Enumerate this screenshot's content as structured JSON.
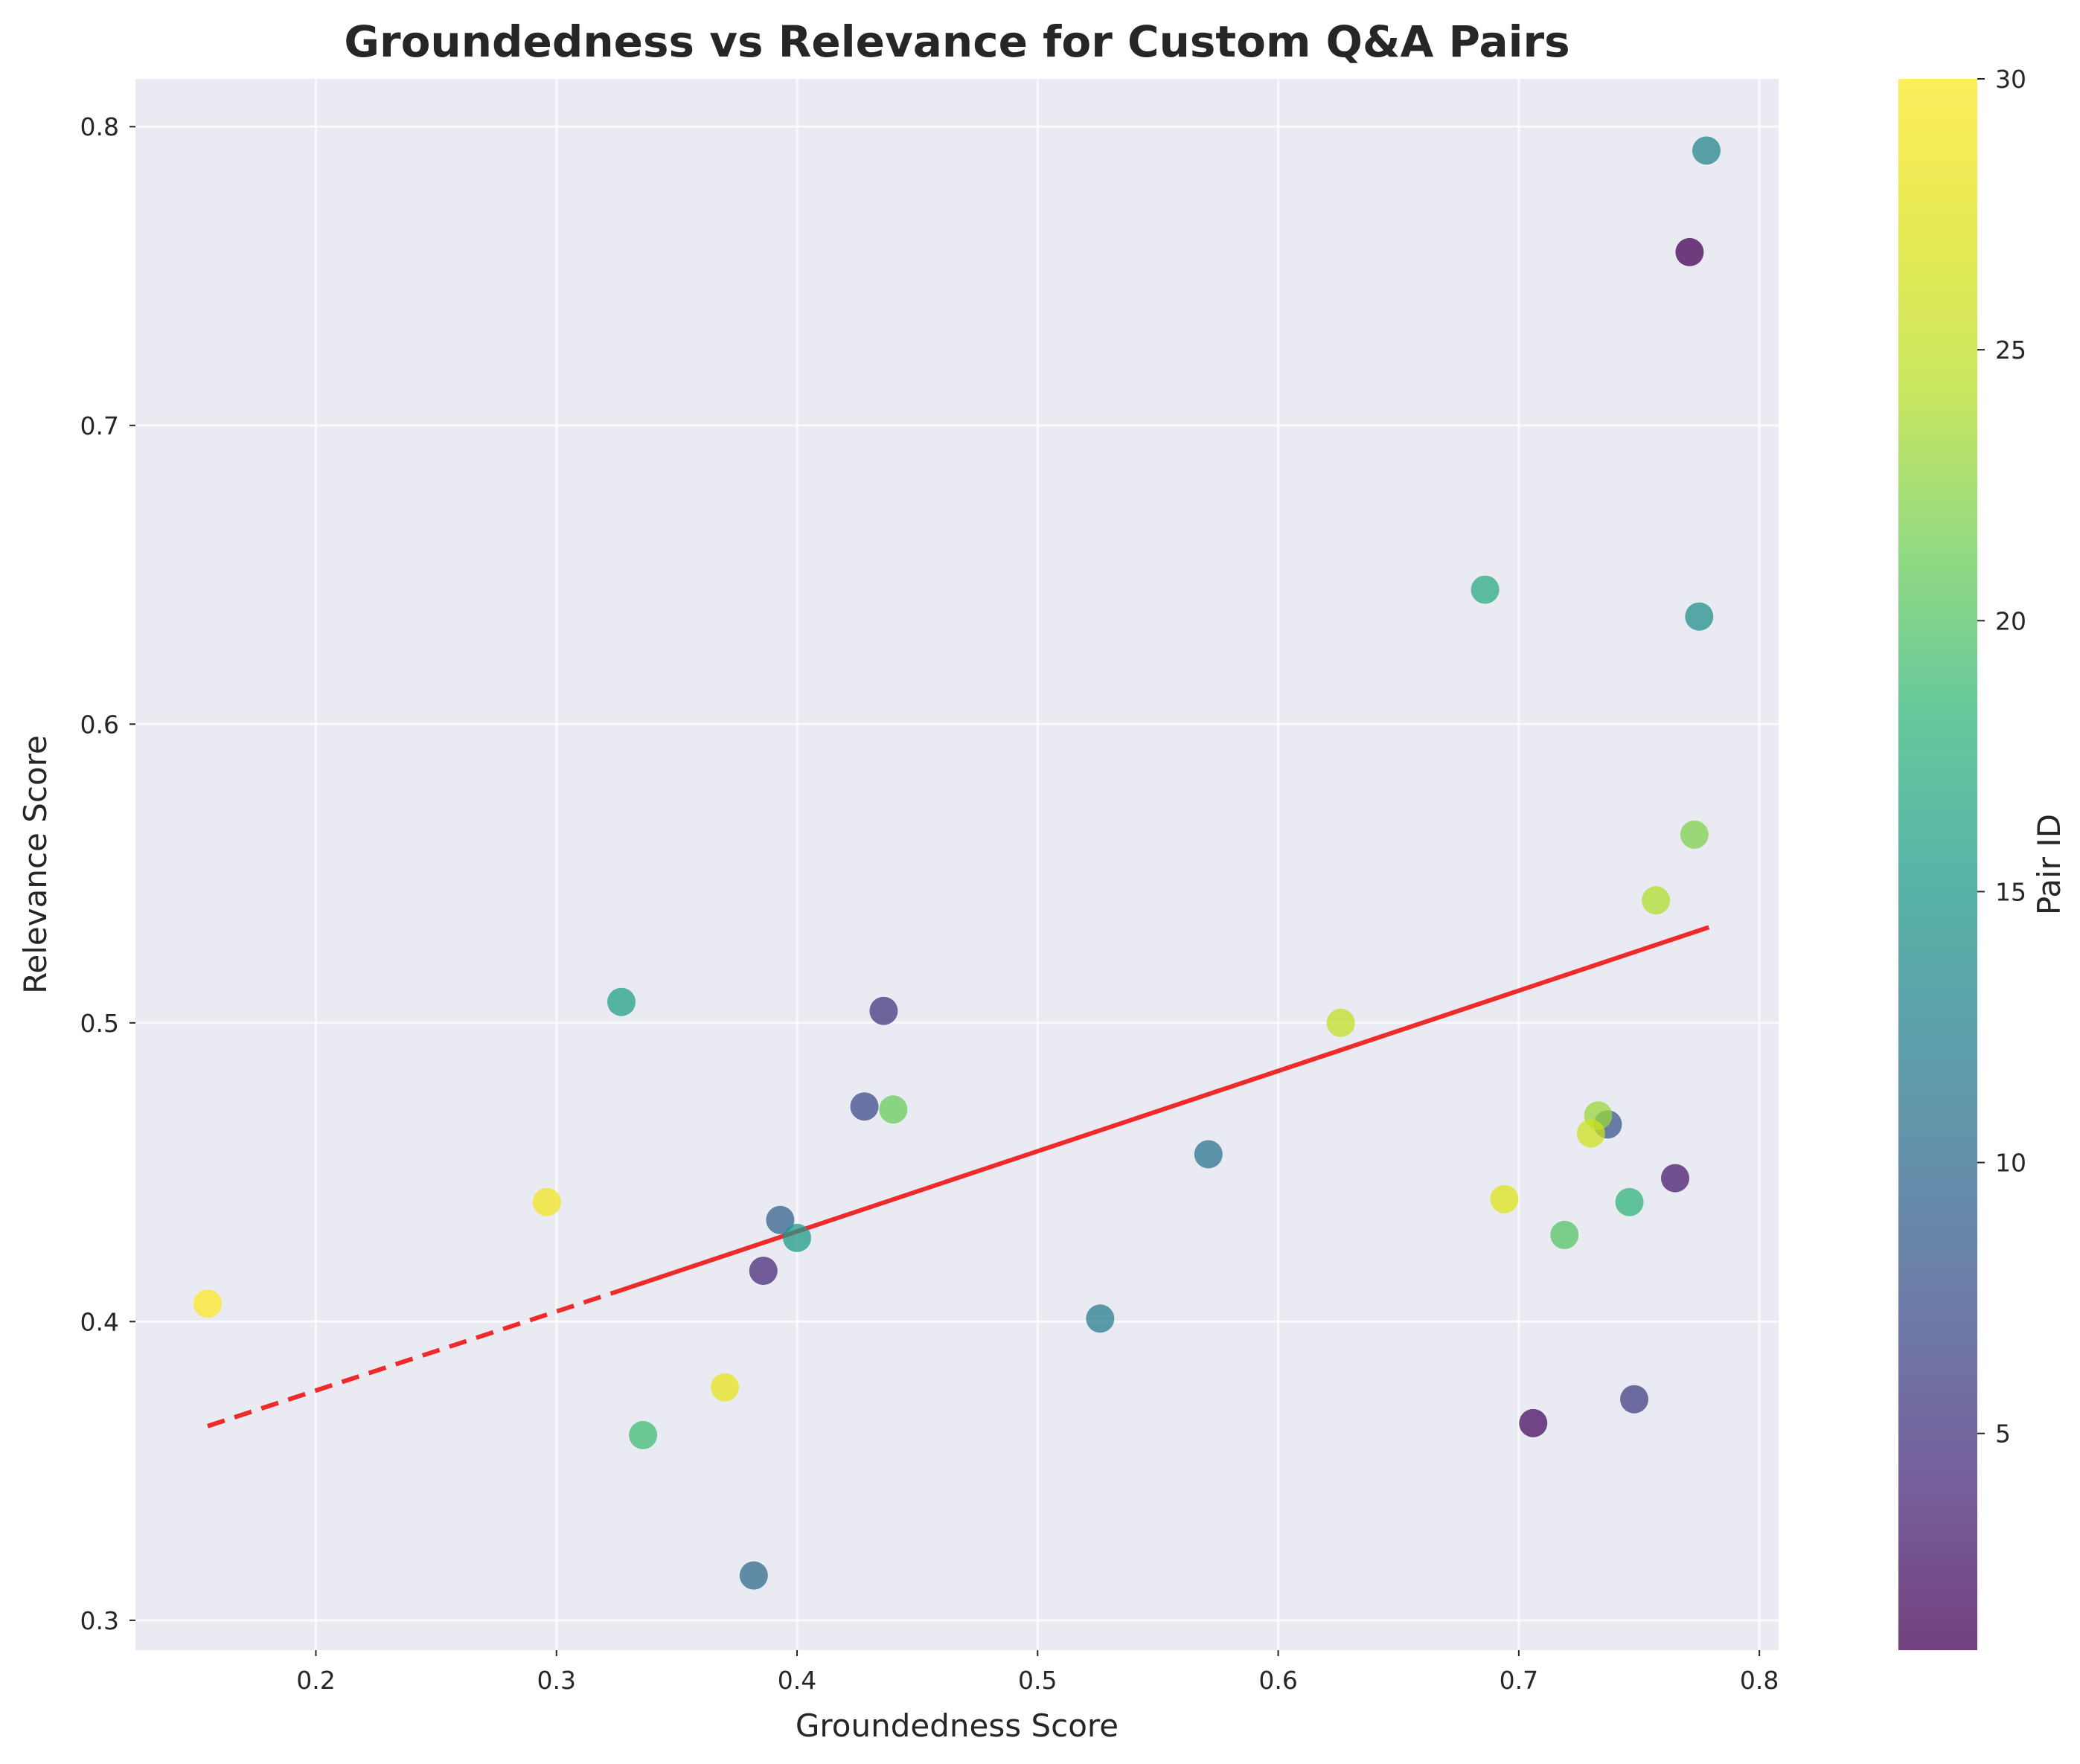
{
  "chart_data": {
    "type": "scatter",
    "title": "Groundedness vs Relevance for Custom Q&A Pairs",
    "xlabel": "Groundedness Score",
    "ylabel": "Relevance Score",
    "xlim": [
      0.125,
      0.808
    ],
    "ylim": [
      0.29,
      0.816
    ],
    "xticks": [
      0.2,
      0.3,
      0.4,
      0.5,
      0.6,
      0.7,
      0.8
    ],
    "yticks": [
      0.3,
      0.4,
      0.5,
      0.6,
      0.7,
      0.8
    ],
    "grid": true,
    "colormap": "viridis",
    "colorbar": {
      "label": "Pair ID",
      "range": [
        1,
        30
      ],
      "ticks": [
        5,
        10,
        15,
        20,
        25,
        30
      ]
    },
    "trendline": {
      "color": "#ee2a2a",
      "dashed_segment": {
        "x1": 0.155,
        "y1": 0.365,
        "x2": 0.325,
        "y2": 0.41
      },
      "solid_segment": {
        "x1": 0.325,
        "y1": 0.41,
        "x2": 0.779,
        "y2": 0.532
      }
    },
    "points": [
      {
        "id": 1,
        "x": 0.771,
        "y": 0.758
      },
      {
        "id": 2,
        "x": 0.706,
        "y": 0.366
      },
      {
        "id": 3,
        "x": 0.765,
        "y": 0.448
      },
      {
        "id": 4,
        "x": 0.386,
        "y": 0.417
      },
      {
        "id": 5,
        "x": 0.436,
        "y": 0.504
      },
      {
        "id": 6,
        "x": 0.748,
        "y": 0.374
      },
      {
        "id": 7,
        "x": 0.428,
        "y": 0.472
      },
      {
        "id": 8,
        "x": 0.737,
        "y": 0.466
      },
      {
        "id": 9,
        "x": 0.393,
        "y": 0.434
      },
      {
        "id": 10,
        "x": 0.382,
        "y": 0.315
      },
      {
        "id": 11,
        "x": 0.571,
        "y": 0.456
      },
      {
        "id": 12,
        "x": 0.526,
        "y": 0.401
      },
      {
        "id": 13,
        "x": 0.778,
        "y": 0.792
      },
      {
        "id": 14,
        "x": 0.775,
        "y": 0.636
      },
      {
        "id": 15,
        "x": 0.4,
        "y": 0.428
      },
      {
        "id": 16,
        "x": 0.327,
        "y": 0.507
      },
      {
        "id": 17,
        "x": 0.686,
        "y": 0.645
      },
      {
        "id": 18,
        "x": 0.746,
        "y": 0.44
      },
      {
        "id": 19,
        "x": 0.336,
        "y": 0.362
      },
      {
        "id": 20,
        "x": 0.719,
        "y": 0.429
      },
      {
        "id": 21,
        "x": 0.44,
        "y": 0.471
      },
      {
        "id": 22,
        "x": 0.773,
        "y": 0.563
      },
      {
        "id": 23,
        "x": 0.733,
        "y": 0.469
      },
      {
        "id": 24,
        "x": 0.757,
        "y": 0.541
      },
      {
        "id": 25,
        "x": 0.626,
        "y": 0.5
      },
      {
        "id": 26,
        "x": 0.73,
        "y": 0.463
      },
      {
        "id": 27,
        "x": 0.694,
        "y": 0.441
      },
      {
        "id": 28,
        "x": 0.37,
        "y": 0.378
      },
      {
        "id": 29,
        "x": 0.296,
        "y": 0.44
      },
      {
        "id": 30,
        "x": 0.155,
        "y": 0.406
      }
    ]
  }
}
